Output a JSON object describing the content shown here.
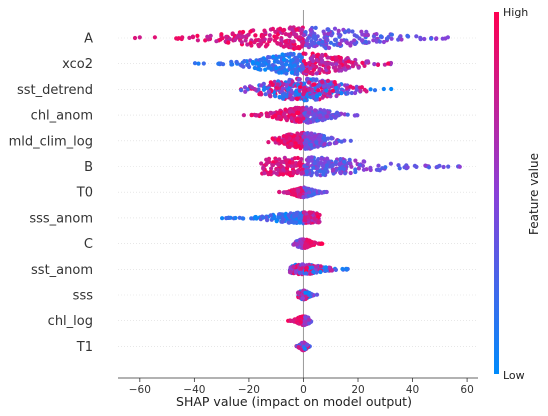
{
  "chart_data": {
    "type": "scatter",
    "subtype": "shap-beeswarm",
    "title": "",
    "xlabel": "SHAP value (impact on model output)",
    "xlim": [
      -68,
      64
    ],
    "xticks": [
      -60,
      -40,
      -20,
      0,
      20,
      40,
      60
    ],
    "zero_line": true,
    "grid": "horizontal dotted",
    "colors": {
      "low": "#008bfb",
      "high": "#ff0051",
      "row_grid": "#d9d9d9",
      "zero_line": "#999999"
    },
    "colorbar": {
      "label": "Feature value",
      "high_label": "High",
      "low_label": "Low",
      "position": "right"
    },
    "features": [
      {
        "name": "A",
        "min": -62,
        "max": 53,
        "spread": 1.0,
        "color_rule": "pos_low"
      },
      {
        "name": "xco2",
        "min": -40,
        "max": 33,
        "spread": 1.0,
        "color_rule": "neg_low"
      },
      {
        "name": "sst_detrend",
        "min": -23,
        "max": 36,
        "spread": 1.0,
        "color_rule": "mixed"
      },
      {
        "name": "chl_anom",
        "min": -22,
        "max": 23,
        "spread": 0.7,
        "color_rule": "pos_low"
      },
      {
        "name": "mld_clim_log",
        "min": -13,
        "max": 21,
        "spread": 0.75,
        "color_rule": "pos_low"
      },
      {
        "name": "B",
        "min": -16,
        "max": 59,
        "spread": 0.85,
        "color_rule": "pos_low"
      },
      {
        "name": "T0",
        "min": -9,
        "max": 9,
        "spread": 0.45,
        "color_rule": "pos_low"
      },
      {
        "name": "sss_anom",
        "min": -30,
        "max": 6,
        "spread": 0.5,
        "color_rule": "neg_low"
      },
      {
        "name": "C",
        "min": -4,
        "max": 7,
        "spread": 0.4,
        "color_rule": "pos_high"
      },
      {
        "name": "sst_anom",
        "min": -5,
        "max": 18,
        "spread": 0.45,
        "color_rule": "mixed"
      },
      {
        "name": "sss",
        "min": -2,
        "max": 5,
        "spread": 0.4,
        "color_rule": "mixed"
      },
      {
        "name": "chl_log",
        "min": -6,
        "max": 3,
        "spread": 0.4,
        "color_rule": "neg_high"
      },
      {
        "name": "T1",
        "min": -3,
        "max": 3,
        "spread": 0.35,
        "color_rule": "mixed"
      }
    ]
  }
}
